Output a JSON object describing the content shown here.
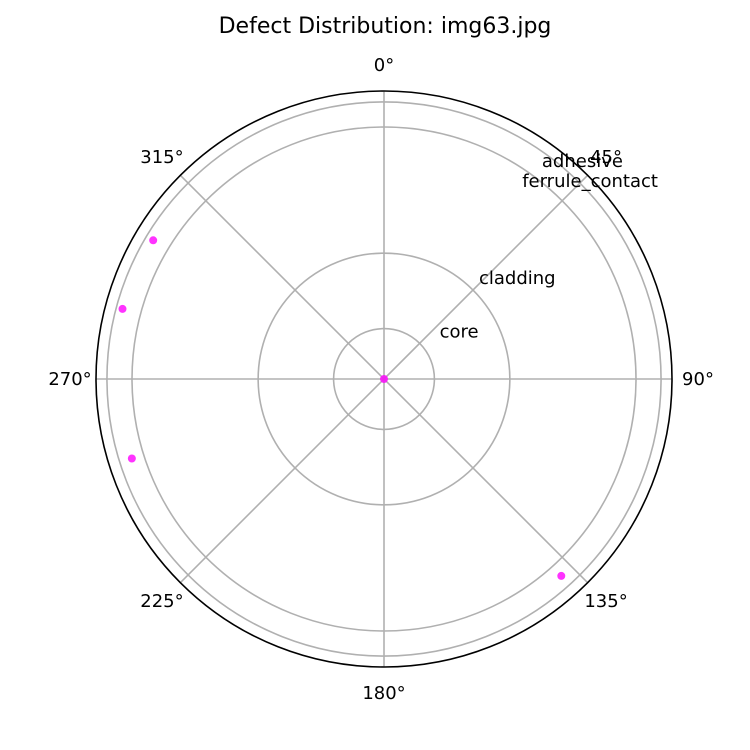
{
  "chart_data": {
    "type": "scatter",
    "projection": "polar",
    "title": "Defect Distribution: img63.jpg",
    "theta_direction": "clockwise",
    "theta_zero_location": "top",
    "theta_ticks": [
      "0°",
      "45°",
      "90°",
      "135°",
      "180°",
      "225°",
      "270°",
      "315°"
    ],
    "theta_tick_values": [
      0,
      45,
      90,
      135,
      180,
      225,
      270,
      315
    ],
    "rlim": [
      0,
      1
    ],
    "grid": true,
    "zones": [
      {
        "label": "core",
        "r": 0.175,
        "label_angle_deg": 45
      },
      {
        "label": "cladding",
        "r": 0.437,
        "label_angle_deg": 45
      },
      {
        "label": "ferrule_contact",
        "r": 0.875,
        "label_angle_deg": 45
      },
      {
        "label": "adhesive",
        "r": 0.962,
        "label_angle_deg": 45
      }
    ],
    "series": [
      {
        "color": "#ff00ff",
        "points": [
          {
            "theta_deg": 0,
            "r": 0.0
          },
          {
            "theta_deg": 138,
            "r": 0.92
          },
          {
            "theta_deg": 252.5,
            "r": 0.918
          },
          {
            "theta_deg": 285,
            "r": 0.94
          },
          {
            "theta_deg": 301,
            "r": 0.935
          }
        ]
      }
    ]
  }
}
